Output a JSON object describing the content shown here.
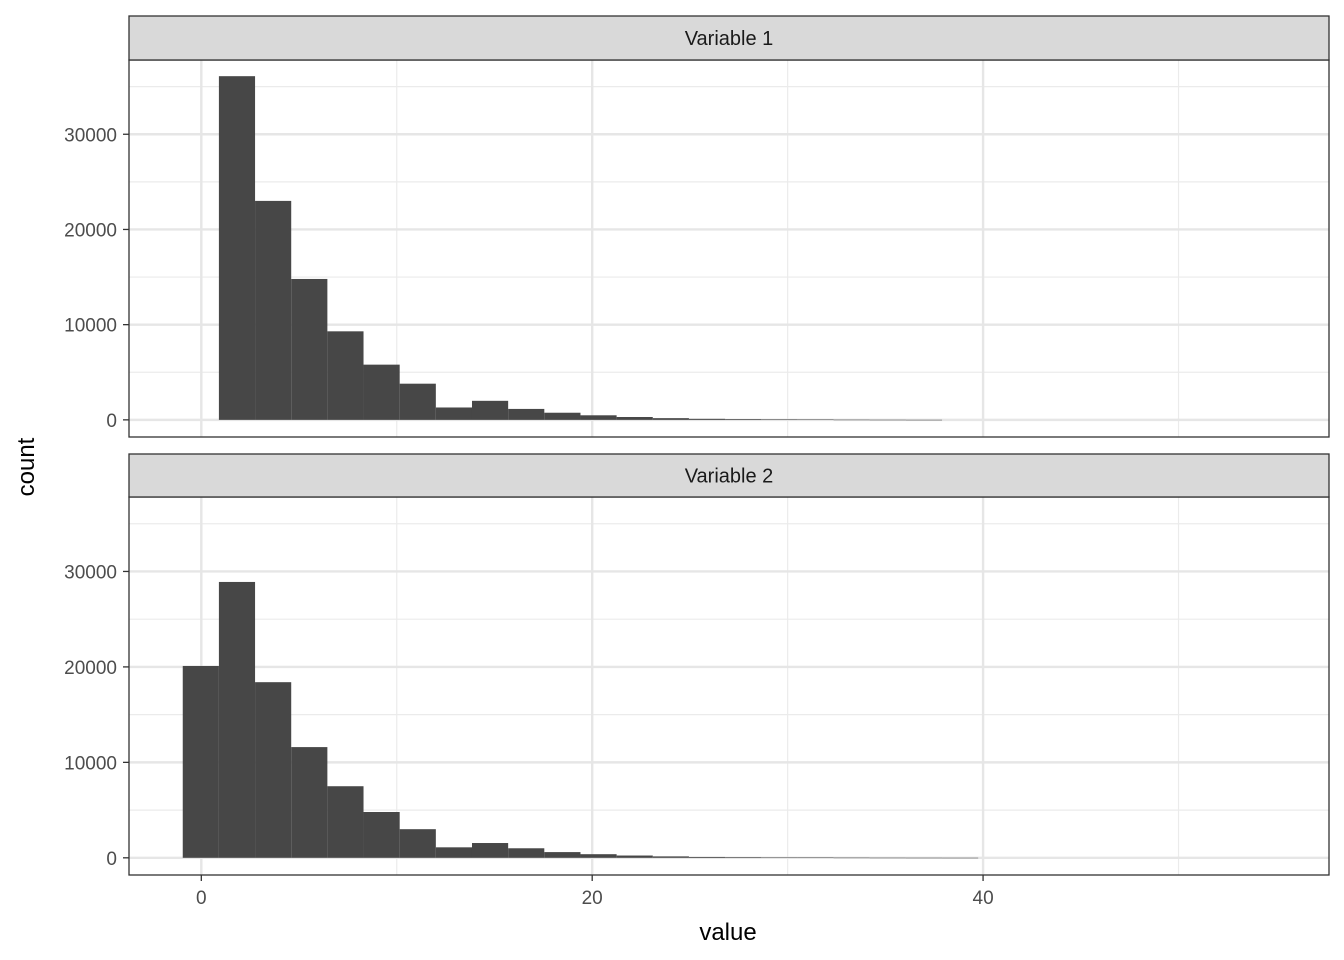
{
  "chart_data": {
    "type": "bar",
    "subtype": "histogram-facets",
    "xlabel": "value",
    "ylabel": "count",
    "xlim": [
      -3.7,
      57.7
    ],
    "ylim": [
      -1800,
      37800
    ],
    "x_ticks": [
      0,
      20,
      40
    ],
    "y_ticks": [
      0,
      10000,
      20000,
      30000
    ],
    "bin_width": 1.85,
    "grid": true,
    "bar_color": "#474747",
    "panels": [
      {
        "strip_label": "Variable 1",
        "bins": [
          {
            "x0": 0.9,
            "count": 36100
          },
          {
            "x0": 2.75,
            "count": 23000
          },
          {
            "x0": 4.6,
            "count": 14800
          },
          {
            "x0": 6.45,
            "count": 9300
          },
          {
            "x0": 8.3,
            "count": 5800
          },
          {
            "x0": 10.15,
            "count": 3800
          },
          {
            "x0": 12.0,
            "count": 1300
          },
          {
            "x0": 13.85,
            "count": 2000
          },
          {
            "x0": 15.7,
            "count": 1150
          },
          {
            "x0": 17.55,
            "count": 750
          },
          {
            "x0": 19.4,
            "count": 480
          },
          {
            "x0": 21.25,
            "count": 300
          },
          {
            "x0": 23.1,
            "count": 180
          },
          {
            "x0": 24.95,
            "count": 110
          },
          {
            "x0": 26.8,
            "count": 80
          },
          {
            "x0": 28.65,
            "count": 60
          },
          {
            "x0": 30.5,
            "count": 40
          },
          {
            "x0": 32.35,
            "count": 20
          },
          {
            "x0": 34.2,
            "count": 12
          },
          {
            "x0": 36.05,
            "count": 6
          }
        ]
      },
      {
        "strip_label": "Variable 2",
        "bins": [
          {
            "x0": -0.95,
            "count": 20100
          },
          {
            "x0": 0.9,
            "count": 28900
          },
          {
            "x0": 2.75,
            "count": 18400
          },
          {
            "x0": 4.6,
            "count": 11600
          },
          {
            "x0": 6.45,
            "count": 7500
          },
          {
            "x0": 8.3,
            "count": 4800
          },
          {
            "x0": 10.15,
            "count": 3000
          },
          {
            "x0": 12.0,
            "count": 1100
          },
          {
            "x0": 13.85,
            "count": 1550
          },
          {
            "x0": 15.7,
            "count": 1000
          },
          {
            "x0": 17.55,
            "count": 600
          },
          {
            "x0": 19.4,
            "count": 380
          },
          {
            "x0": 21.25,
            "count": 240
          },
          {
            "x0": 23.1,
            "count": 150
          },
          {
            "x0": 24.95,
            "count": 90
          },
          {
            "x0": 26.8,
            "count": 70
          },
          {
            "x0": 28.65,
            "count": 50
          },
          {
            "x0": 30.5,
            "count": 35
          },
          {
            "x0": 32.35,
            "count": 20
          },
          {
            "x0": 34.2,
            "count": 12
          },
          {
            "x0": 36.05,
            "count": 8
          },
          {
            "x0": 37.9,
            "count": 5
          }
        ]
      }
    ]
  }
}
